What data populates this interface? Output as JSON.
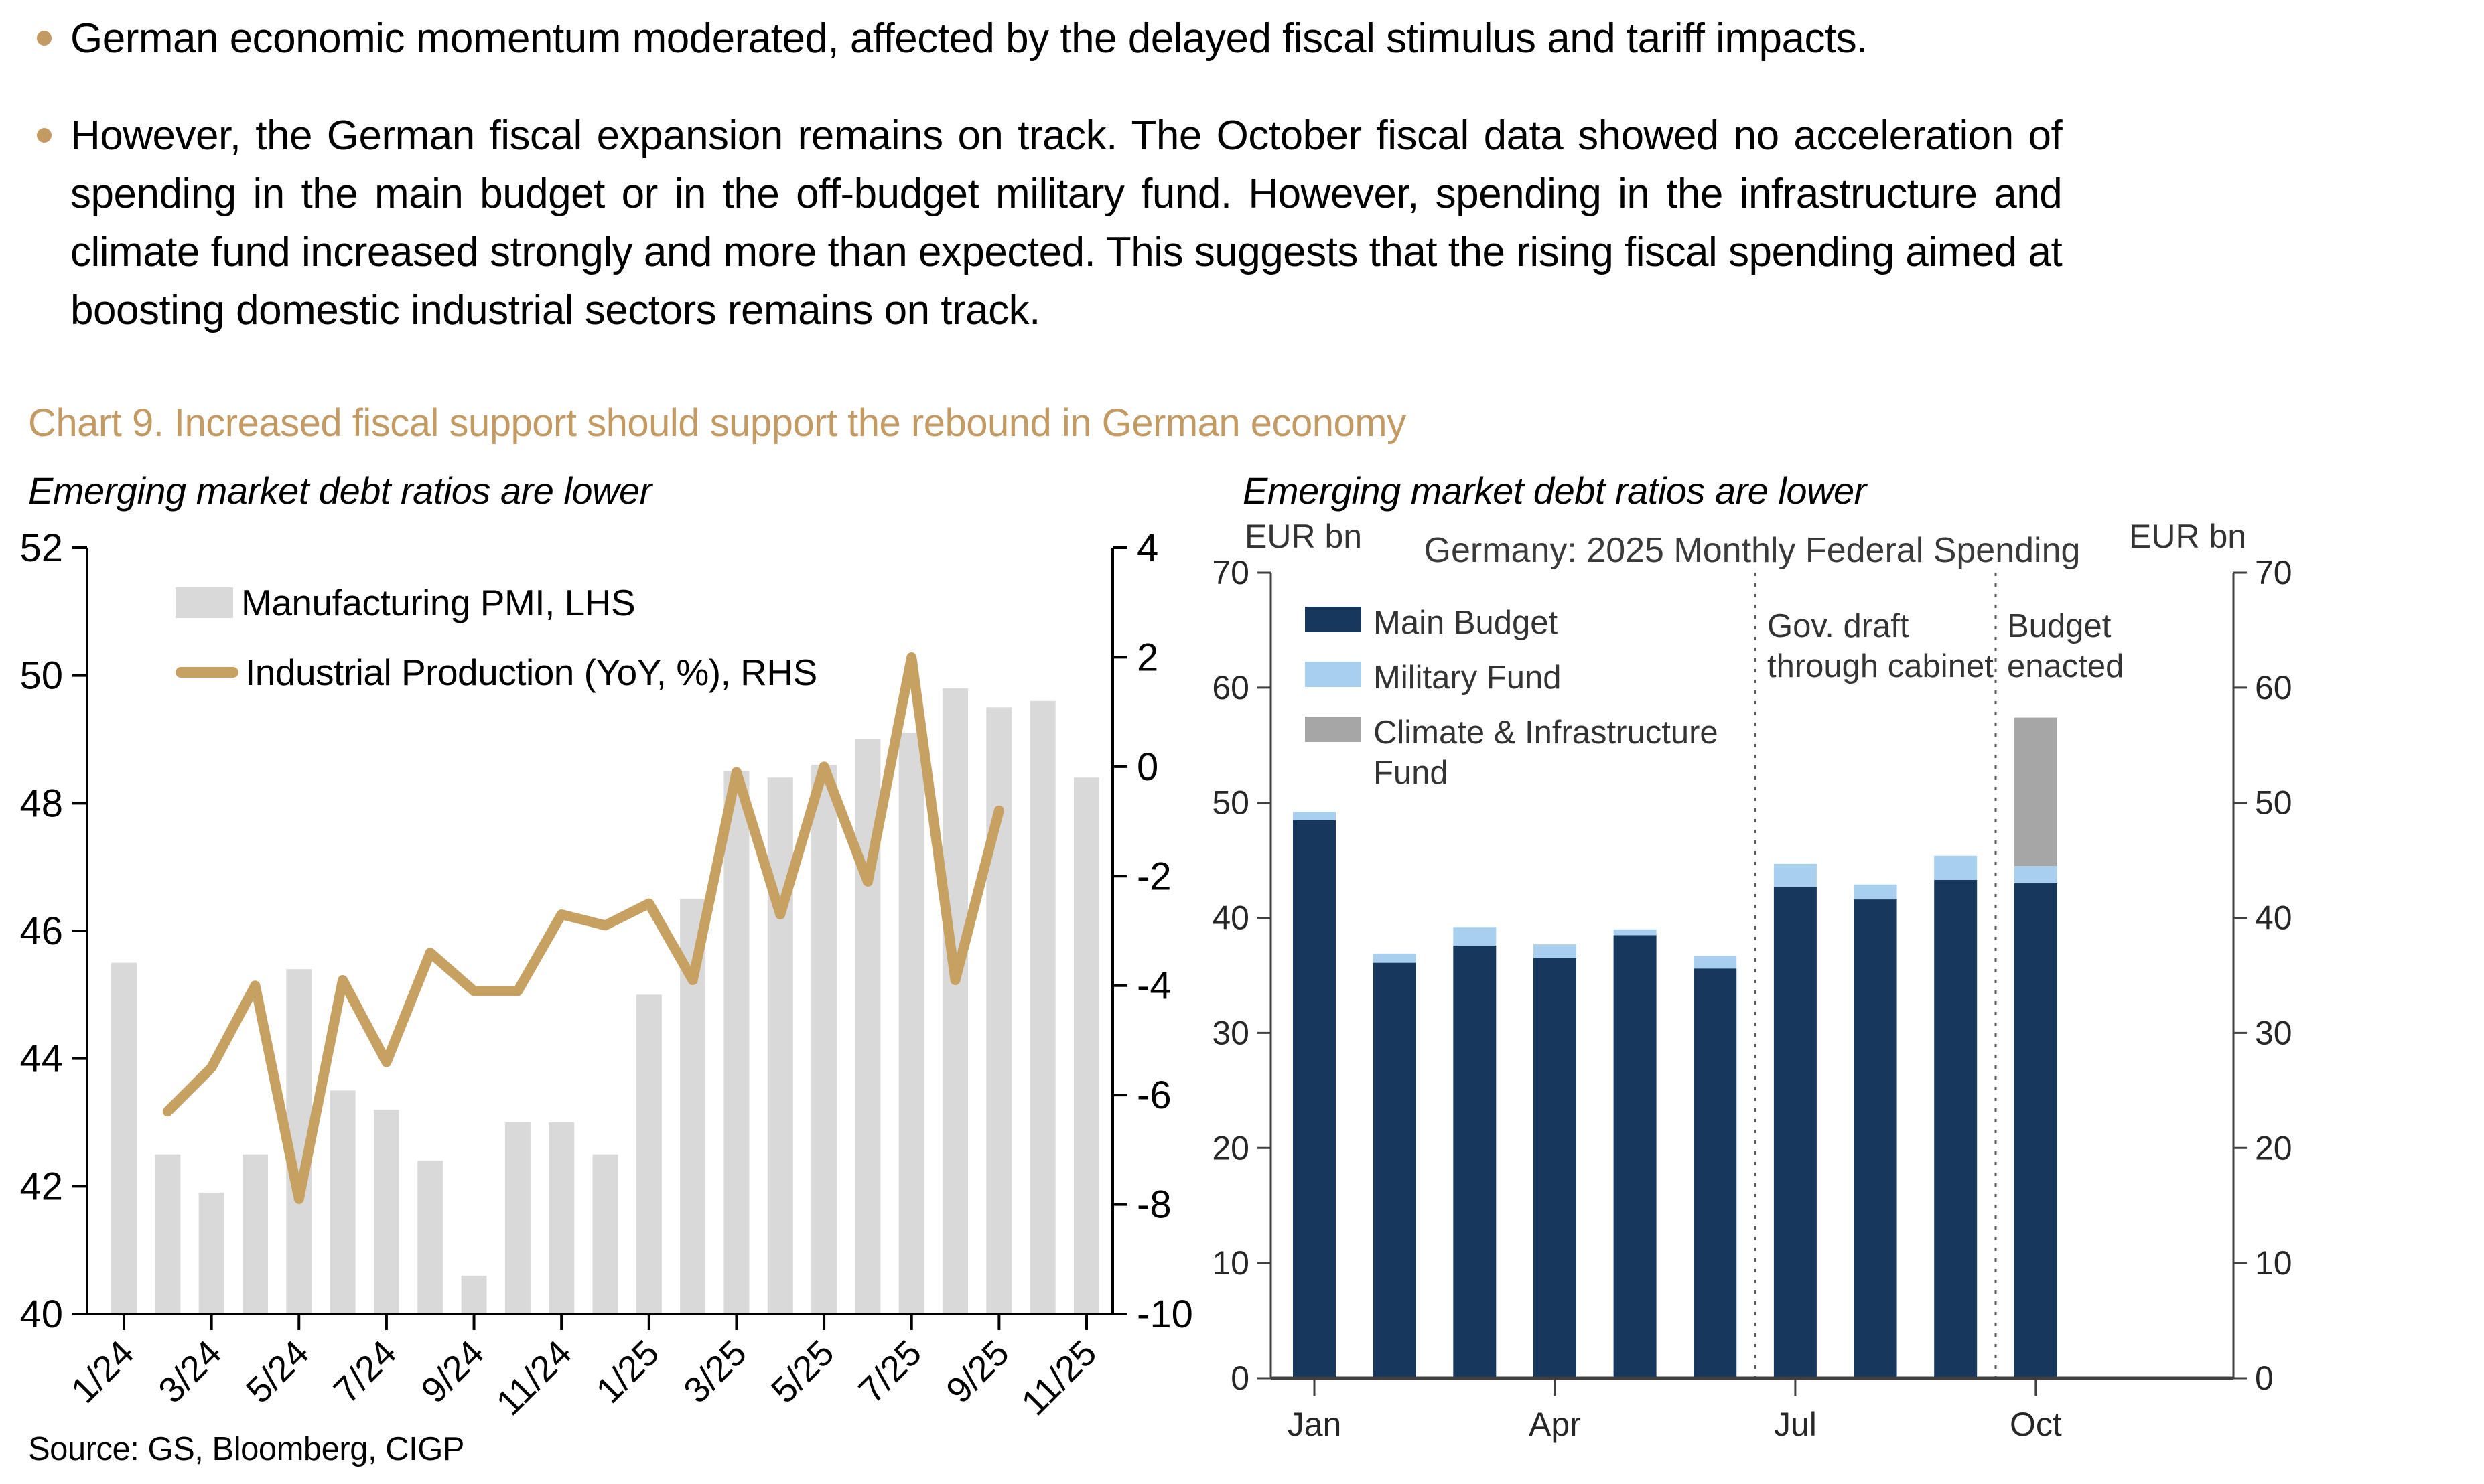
{
  "bullets": [
    {
      "text": "German economic momentum moderated, affected by the delayed fiscal stimulus and tariff impacts."
    },
    {
      "lines": [
        "However, the German fiscal expansion remains on track. The October fiscal data showed no acceleration of",
        "spending in the main budget or in the off-budget military fund. However, spending in the infrastructure and",
        "climate fund increased strongly and more than expected. This suggests that the rising fiscal spending aimed at",
        "boosting domestic industrial sectors remains on track."
      ]
    }
  ],
  "chart_section": {
    "title": "Chart 9. Increased fiscal support should support the rebound in German economy"
  },
  "source": "Source: GS, Bloomberg, CIGP",
  "colors": {
    "accent_tan": "#C49A63",
    "line_gold": "#C6A161",
    "pmi_bar_gray": "#D9D9D9",
    "main_budget_navy": "#17375D",
    "military_light_blue": "#A9CFEE",
    "climate_fund_gray": "#A6A6A6",
    "axis_black": "#000000",
    "axis_dark_gray": "#404040"
  },
  "chart_data": [
    {
      "type": "bar+line",
      "subtitle": "Emerging market debt ratios are lower",
      "categories": [
        "1/24",
        "2/24",
        "3/24",
        "4/24",
        "5/24",
        "6/24",
        "7/24",
        "8/24",
        "9/24",
        "10/24",
        "11/24",
        "12/24",
        "1/25",
        "2/25",
        "3/25",
        "4/25",
        "5/25",
        "6/25",
        "7/25",
        "8/25",
        "9/25",
        "10/25",
        "11/25"
      ],
      "x_tick_labels": [
        "1/24",
        "3/24",
        "5/24",
        "7/24",
        "9/24",
        "11/24",
        "1/25",
        "3/25",
        "5/25",
        "7/25",
        "9/25",
        "11/25"
      ],
      "left_axis": {
        "min": 40,
        "max": 52,
        "ticks": [
          52,
          50,
          48,
          46,
          44,
          42,
          40
        ]
      },
      "right_axis": {
        "min": -10,
        "max": 4,
        "ticks": [
          4,
          2,
          0,
          -2,
          -4,
          -6,
          -8,
          -10
        ]
      },
      "series": [
        {
          "name": "Manufacturing PMI, LHS",
          "type": "bar",
          "axis": "left",
          "color": "#D9D9D9",
          "values": [
            45.5,
            42.5,
            41.9,
            42.5,
            45.4,
            43.5,
            43.2,
            42.4,
            40.6,
            43.0,
            43.0,
            42.5,
            45.0,
            46.5,
            48.5,
            48.4,
            48.6,
            49.0,
            49.1,
            49.8,
            49.5,
            49.6,
            48.4
          ]
        },
        {
          "name": "Industrial Production (YoY, %), RHS",
          "type": "line",
          "axis": "right",
          "color": "#C6A161",
          "start_index": 1,
          "values": [
            -6.3,
            -5.5,
            -4.0,
            -7.9,
            -3.9,
            -5.4,
            -3.4,
            -4.1,
            -4.1,
            -2.7,
            -2.9,
            -2.5,
            -3.9,
            -0.1,
            -2.7,
            0.0,
            -2.1,
            2.0,
            -3.9,
            -0.8
          ]
        }
      ],
      "grid": false,
      "legend_position": "top-left-inside"
    },
    {
      "type": "stacked-bar",
      "subtitle": "Emerging market debt ratios are lower",
      "title": "Germany: 2025 Monthly Federal Spending",
      "left_axis_label": "EUR bn",
      "right_axis_label": "EUR bn",
      "categories": [
        "Jan",
        "Feb",
        "Mar",
        "Apr",
        "May",
        "Jun",
        "Jul",
        "Aug",
        "Sep",
        "Oct"
      ],
      "x_tick_labels": [
        "Jan",
        "Apr",
        "Jul",
        "Oct"
      ],
      "axis": {
        "min": 0,
        "max": 70,
        "step": 10
      },
      "series": [
        {
          "name": "Main Budget",
          "color": "#17375D",
          "values": [
            48.5,
            36.1,
            37.6,
            36.5,
            38.5,
            35.6,
            42.7,
            41.6,
            43.3,
            43.0
          ]
        },
        {
          "name": "Military Fund",
          "color": "#A9CFEE",
          "values": [
            0.7,
            0.8,
            1.6,
            1.2,
            0.5,
            1.1,
            2.0,
            1.3,
            2.1,
            1.5
          ]
        },
        {
          "name": "Climate & Infrastructure Fund",
          "color": "#A6A6A6",
          "values": [
            0,
            0,
            0,
            0,
            0,
            0,
            0,
            0,
            0,
            12.9
          ]
        }
      ],
      "dividers": [
        {
          "after_category": "Jun",
          "label_lines": [
            "Gov. draft",
            "through cabinet"
          ]
        },
        {
          "after_category": "Sep",
          "label_lines": [
            "Budget",
            "enacted"
          ]
        }
      ],
      "grid": false,
      "legend_position": "top-left-inside"
    }
  ]
}
